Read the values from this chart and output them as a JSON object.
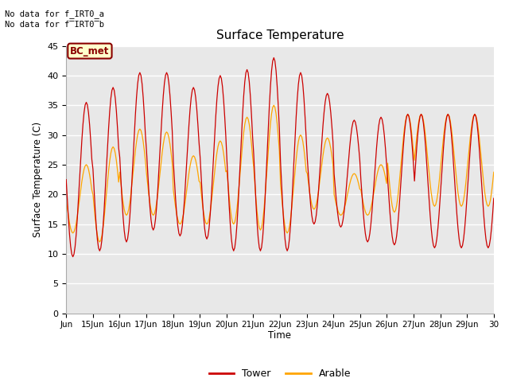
{
  "title": "Surface Temperature",
  "ylabel": "Surface Temperature (C)",
  "xlabel": "Time",
  "annotation_line1": "No data for f_IRT0_a",
  "annotation_line2": "No data for f̅IRT0̅b",
  "bc_met_label": "BC_met",
  "ylim": [
    0,
    45
  ],
  "yticks": [
    0,
    5,
    10,
    15,
    20,
    25,
    30,
    35,
    40,
    45
  ],
  "legend_labels": [
    "Tower",
    "Arable"
  ],
  "tower_color": "#cc0000",
  "arable_color": "#ffa500",
  "plot_bg_color": "#e8e8e8",
  "n_days": 16,
  "x_tick_labels": [
    "Jun",
    "15Jun",
    "16Jun",
    "17Jun",
    "18Jun",
    "19Jun",
    "20Jun",
    "21Jun",
    "22Jun",
    "23Jun",
    "24Jun",
    "25Jun",
    "26Jun",
    "27Jun",
    "28Jun",
    "29Jun",
    "30"
  ],
  "tower_peaks": [
    9.5,
    35.5,
    10.5,
    38.0,
    12.0,
    40.5,
    14.0,
    40.5,
    13.0,
    38.0,
    12.5,
    40.0,
    10.5,
    41.0,
    10.5,
    43.0,
    10.5,
    40.5,
    15.0,
    37.0,
    14.5,
    32.5,
    12.0,
    33.0,
    11.5,
    33.5,
    11.0
  ],
  "arable_peaks": [
    13.5,
    25.0,
    12.0,
    28.0,
    16.5,
    31.0,
    16.5,
    30.5,
    15.0,
    26.5,
    15.0,
    29.0,
    15.0,
    33.0,
    14.0,
    35.0,
    13.5,
    30.0,
    17.5,
    29.5,
    16.5,
    23.5,
    16.5,
    25.0,
    17.0,
    33.5,
    18.0
  ]
}
